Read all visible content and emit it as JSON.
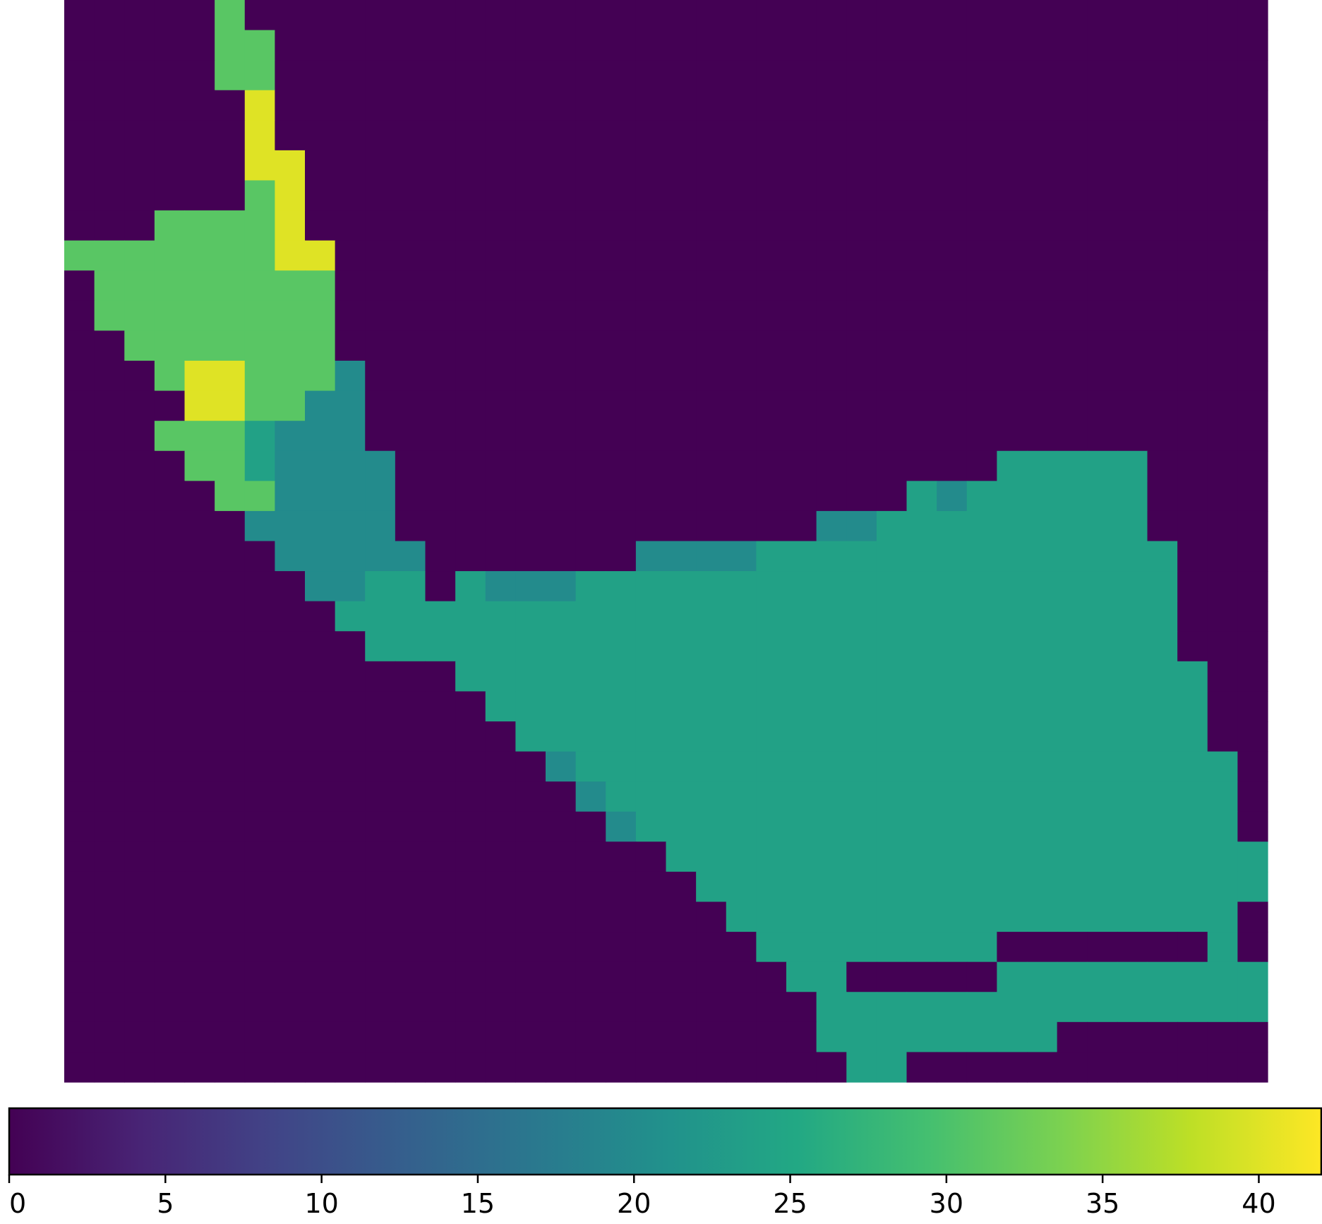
{
  "chart_data": {
    "type": "heatmap",
    "title": "",
    "xlabel": "",
    "ylabel": "",
    "n_cols": 40,
    "n_rows": 36,
    "value_legend": {
      "0": 0,
      "1": 20,
      "2": 24,
      "3": 31,
      "4": 40
    },
    "grid_codes": [
      "0000030000000000000000000000000000000000",
      "0000033000000000000000000000000000000000",
      "0000033000000000000000000000000000000000",
      "0000004000000000000000000000000000000000",
      "0000004000000000000000000000000000000000",
      "0000004400000000000000000000000000000000",
      "0000003400000000000000000000000000000000",
      "0003333400000000000000000000000000000000",
      "3333333440000000000000000000000000000000",
      "0333333330000000000000000000000000000000",
      "0333333330000000000000000000000000000000",
      "0033333330000000000000000000000000000000",
      "0003443331000000000000000000000000000000",
      "0000443311000000000000000000000000000000",
      "0003332111000000000000000000000000000000",
      "0000332111100000000000000000000222220000",
      "0000033111100000000000000000212222220000",
      "0000001111100000000000000112222222220000",
      "0000000111110000000111122222222222222000",
      "0000000011220211122222222222222222222000",
      "0000000002222222222222222222222222222000",
      "0000000000222222222222222222222222222000",
      "0000000000000222222222222222222222222200",
      "0000000000000022222222222222222222222200",
      "0000000000000002222222222222222222222200",
      "0000000000000000122222222222222222222220",
      "0000000000000000012222222222222222222220",
      "0000000000000000001222222222222222222220",
      "0000000000000000000022222222222222222222",
      "0000000000000000000002222222222222222222",
      "0000000000000000000000222222222222222220",
      "0000000000000000000000022222222000000020",
      "0000000000000000000000002200000222222222",
      "0000000000000000000000000222222222222222",
      "0000000000000000000000000222222220000000",
      "0000000000000000000000000022000000000000"
    ],
    "colormap": "viridis",
    "vmin": 0,
    "vmax": 42,
    "colorbar": {
      "orientation": "horizontal",
      "ticks": [
        0,
        5,
        10,
        15,
        20,
        25,
        30,
        35,
        40
      ],
      "tick_labels": [
        "0",
        "5",
        "10",
        "15",
        "20",
        "25",
        "30",
        "35",
        "40"
      ]
    }
  }
}
